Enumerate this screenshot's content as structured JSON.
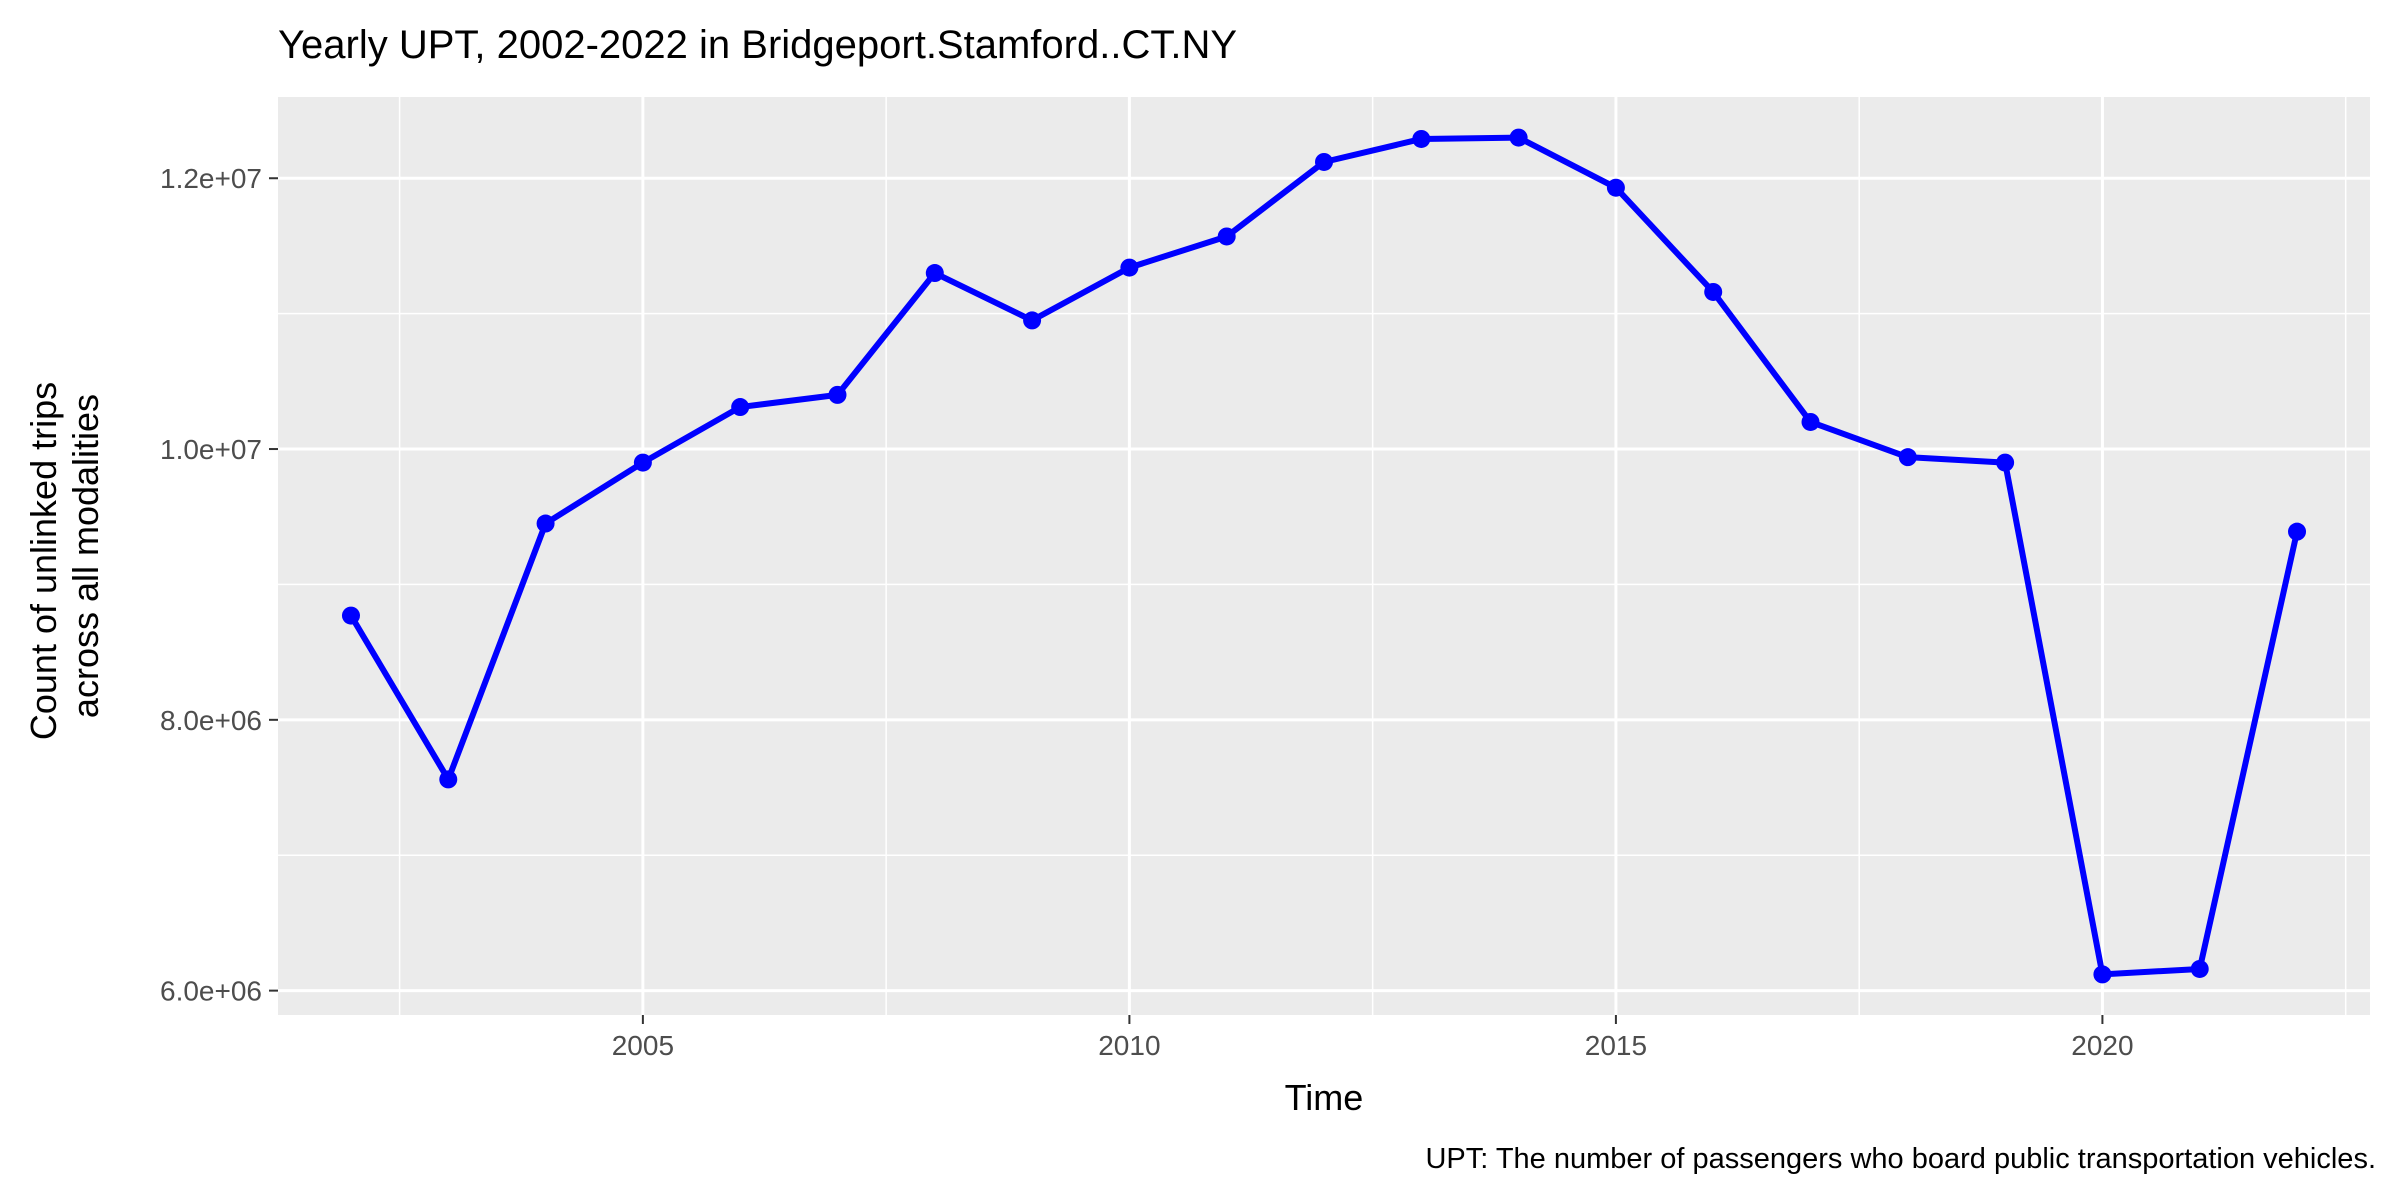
{
  "chart_data": {
    "type": "line",
    "title": "Yearly UPT, 2002-2022 in Bridgeport.Stamford..CT.NY",
    "xlabel": "Time",
    "ylabel_lines": [
      "Count of unlinked trips",
      "across all modalities"
    ],
    "caption": "UPT: The number of passengers who board public transportation vehicles.",
    "x": [
      2002,
      2003,
      2004,
      2005,
      2006,
      2007,
      2008,
      2009,
      2010,
      2011,
      2012,
      2013,
      2014,
      2015,
      2016,
      2017,
      2018,
      2019,
      2020,
      2021,
      2022
    ],
    "series": [
      {
        "values": [
          8770000,
          7560000,
          9450000,
          9900000,
          10310000,
          10400000,
          11300000,
          10950000,
          11340000,
          11570000,
          12120000,
          12290000,
          12300000,
          11930000,
          11160000,
          10200000,
          9940000,
          9900000,
          6120000,
          6160000,
          9390000
        ],
        "color": "#0000FF"
      }
    ],
    "xlim": [
      2001.25,
      2022.75
    ],
    "ylim": [
      5820000,
      12600000
    ],
    "x_ticks": [
      2005,
      2010,
      2015,
      2020
    ],
    "x_tick_labels": [
      "2005",
      "2010",
      "2015",
      "2020"
    ],
    "y_ticks": [
      6000000,
      8000000,
      10000000,
      12000000
    ],
    "y_tick_labels": [
      "6.0e+06",
      "8.0e+06",
      "1.0e+07",
      "1.2e+07"
    ],
    "grid": true,
    "legend": "none",
    "panel_background": "#EBEBEB",
    "grid_color": "#FFFFFF",
    "tick_color": "#333333",
    "tick_label_color": "#4D4D4D"
  }
}
